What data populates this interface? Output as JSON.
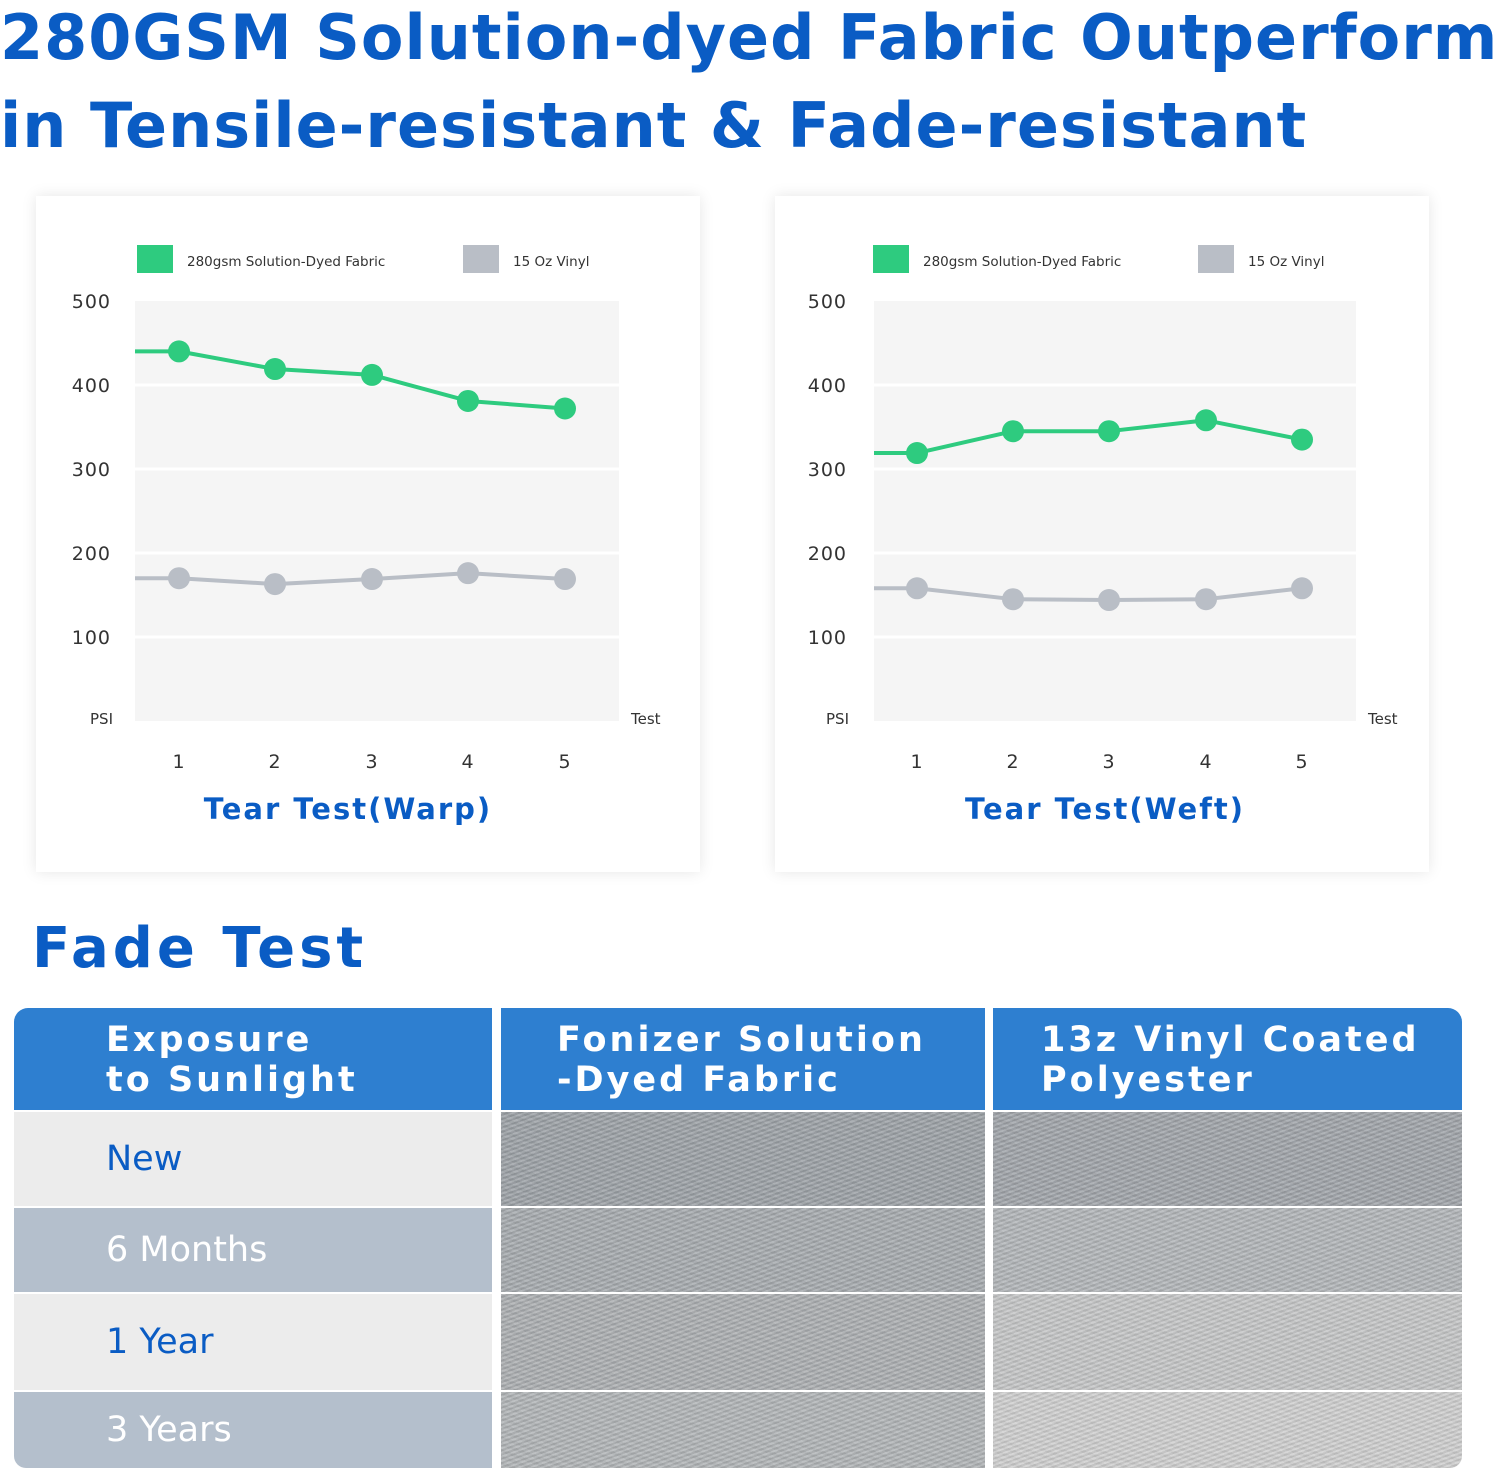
{
  "headline": {
    "line1": "280GSM Solution-dyed Fabric Outperform",
    "line2": "in Tensile-resistant & Fade-resistant"
  },
  "chart_data": [
    {
      "type": "line",
      "title": "Tear Test(Warp)",
      "xlabel": "Test",
      "ylabel": "PSI",
      "categories": [
        "1",
        "2",
        "3",
        "4",
        "5"
      ],
      "yticks": [
        "500",
        "400",
        "300",
        "200",
        "100"
      ],
      "ylim": [
        0,
        500
      ],
      "grid": true,
      "legend_position": "top",
      "series": [
        {
          "name": "280gsm Solution-Dyed Fabric",
          "color": "#2ecb7f",
          "values": [
            440,
            419,
            412,
            381,
            372
          ]
        },
        {
          "name": "15 Oz Vinyl",
          "color": "#b9bec6",
          "values": [
            170,
            163,
            169,
            176,
            169
          ]
        }
      ]
    },
    {
      "type": "line",
      "title": "Tear Test(Weft)",
      "xlabel": "Test",
      "ylabel": "PSI",
      "categories": [
        "1",
        "2",
        "3",
        "4",
        "5"
      ],
      "yticks": [
        "500",
        "400",
        "300",
        "200",
        "100"
      ],
      "ylim": [
        0,
        500
      ],
      "grid": true,
      "legend_position": "top",
      "series": [
        {
          "name": "280gsm Solution-Dyed Fabric",
          "color": "#2ecb7f",
          "values": [
            319,
            345,
            345,
            358,
            335
          ]
        },
        {
          "name": "15 Oz Vinyl",
          "color": "#b9bec6",
          "values": [
            158,
            145,
            144,
            145,
            158
          ]
        }
      ]
    }
  ],
  "fade_test": {
    "title": "Fade Test",
    "headers": {
      "exposure": [
        "Exposure",
        "to Sunlight"
      ],
      "fonizer": [
        "Fonizer Solution",
        "-Dyed Fabric"
      ],
      "vinyl": [
        "13z Vinyl Coated",
        "Polyester"
      ]
    },
    "rows": [
      {
        "label": "New",
        "fonizer_color": "#9ea3a8",
        "vinyl_color": "#a2a6ab"
      },
      {
        "label": "6 Months",
        "fonizer_color": "#a8acb0",
        "vinyl_color": "#b4b7ba"
      },
      {
        "label": "1 Year",
        "fonizer_color": "#adb0b3",
        "vinyl_color": "#c6c7c8"
      },
      {
        "label": "3 Years",
        "fonizer_color": "#b3b6b8",
        "vinyl_color": "#d0d0d0"
      }
    ],
    "colors": {
      "header": "#2e7fd0",
      "row_light": "#ececec",
      "row_dark": "#b4bfcc"
    }
  }
}
